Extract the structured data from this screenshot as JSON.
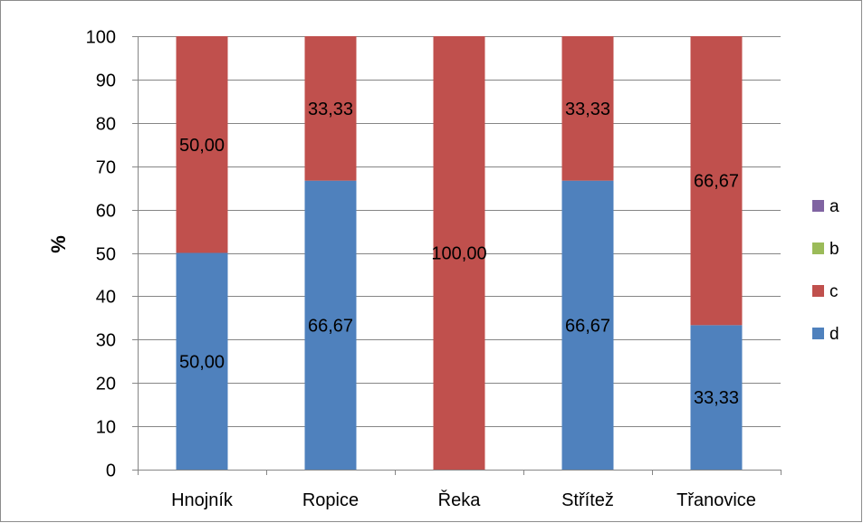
{
  "chart_data": {
    "type": "bar",
    "stacked": true,
    "categories": [
      "Hnojník",
      "Ropice",
      "Řeka",
      "Střítež",
      "Třanovice"
    ],
    "series": [
      {
        "name": "a",
        "color": "#8064A2",
        "values": [
          0,
          0,
          0,
          0,
          0
        ],
        "labels": [
          "",
          "",
          "",
          "",
          ""
        ]
      },
      {
        "name": "b",
        "color": "#9BBB59",
        "values": [
          0,
          0,
          0,
          0,
          0
        ],
        "labels": [
          "",
          "",
          "",
          "",
          ""
        ]
      },
      {
        "name": "c",
        "color": "#C0504D",
        "values": [
          50.0,
          33.33,
          100.0,
          33.33,
          66.67
        ],
        "labels": [
          "50,00",
          "33,33",
          "100,00",
          "33,33",
          "66,67"
        ]
      },
      {
        "name": "d",
        "color": "#4F81BD",
        "values": [
          50.0,
          66.67,
          0,
          66.67,
          33.33
        ],
        "labels": [
          "50,00",
          "66,67",
          "",
          "66,67",
          "33,33"
        ]
      }
    ],
    "stack_order_bottom_to_top": [
      "d",
      "c",
      "b",
      "a"
    ],
    "legend_order": [
      "a",
      "b",
      "c",
      "d"
    ],
    "ylabel": "%",
    "xlabel": "",
    "ylim": [
      0,
      100
    ],
    "yticks": [
      "0",
      "10",
      "20",
      "30",
      "40",
      "50",
      "60",
      "70",
      "80",
      "90",
      "100"
    ],
    "grid": true,
    "legend_position": "right"
  }
}
